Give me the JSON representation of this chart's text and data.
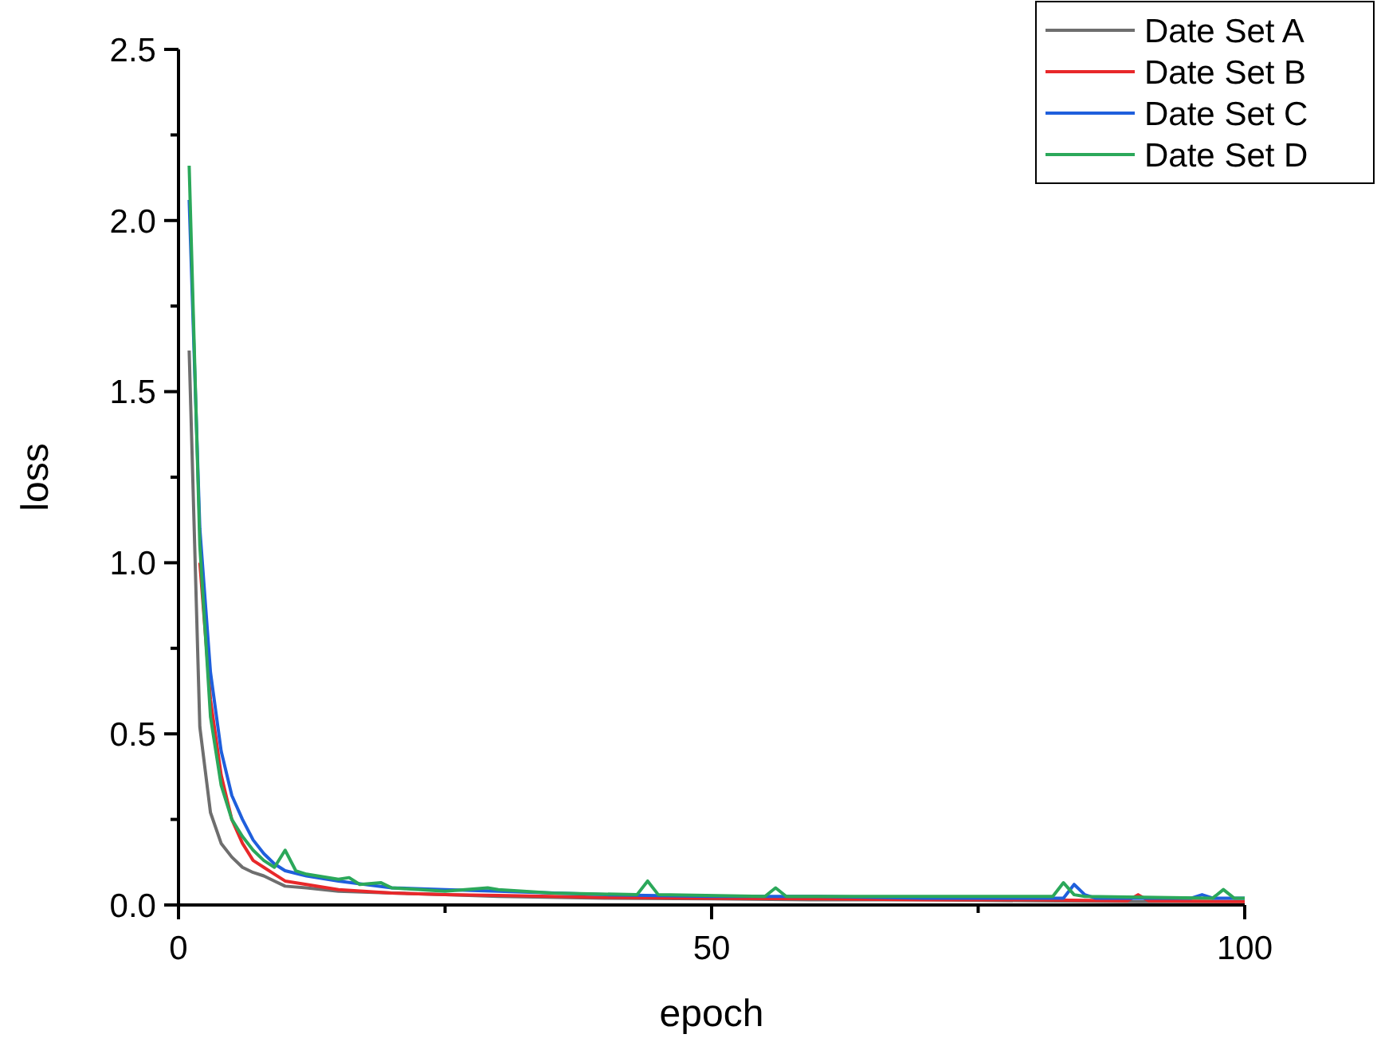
{
  "chart_data": {
    "type": "line",
    "xlabel": "epoch",
    "ylabel": "loss",
    "xlim": [
      0,
      100
    ],
    "ylim": [
      0,
      2.5
    ],
    "xticks": [
      0,
      {
        "value": 25,
        "label": null
      },
      50,
      {
        "value": 75,
        "label": null
      },
      100
    ],
    "yticks": [
      {
        "value": 0,
        "label": "0.0"
      },
      {
        "value": 0.25,
        "label": null
      },
      0.5,
      {
        "value": 0.75,
        "label": null
      },
      {
        "value": 1,
        "label": "1.0"
      },
      {
        "value": 1.25,
        "label": null
      },
      1.5,
      {
        "value": 1.75,
        "label": null
      },
      {
        "value": 2,
        "label": "2.0"
      },
      {
        "value": 2.25,
        "label": null
      },
      2.5
    ],
    "grid": false,
    "legend": "top right",
    "marker": "none",
    "line_style": "solid",
    "series": [
      {
        "name": "Date Set A",
        "color": "#6e6e6e",
        "x": [
          1,
          2,
          3,
          4,
          5,
          6,
          7,
          8,
          9,
          10,
          12,
          15,
          20,
          25,
          30,
          40,
          50,
          60,
          70,
          80,
          90,
          100
        ],
        "values": [
          1.62,
          0.52,
          0.27,
          0.18,
          0.14,
          0.11,
          0.095,
          0.085,
          0.07,
          0.055,
          0.05,
          0.04,
          0.035,
          0.03,
          0.025,
          0.02,
          0.018,
          0.015,
          0.015,
          0.012,
          0.01,
          0.01
        ]
      },
      {
        "name": "Date Set B",
        "color": "#e8282a",
        "x": [
          2,
          3,
          4,
          5,
          6,
          7,
          8,
          9,
          10,
          12,
          15,
          20,
          25,
          30,
          40,
          50,
          60,
          70,
          80,
          89,
          90,
          91,
          100
        ],
        "values": [
          1.0,
          0.6,
          0.38,
          0.25,
          0.18,
          0.13,
          0.11,
          0.09,
          0.07,
          0.06,
          0.045,
          0.035,
          0.03,
          0.028,
          0.022,
          0.02,
          0.018,
          0.015,
          0.015,
          0.012,
          0.03,
          0.012,
          0.01
        ]
      },
      {
        "name": "Date Set C",
        "color": "#1f5fdc",
        "x": [
          1,
          2,
          3,
          4,
          5,
          6,
          7,
          8,
          9,
          10,
          12,
          15,
          20,
          25,
          30,
          40,
          50,
          60,
          70,
          80,
          83,
          84,
          85,
          86,
          95,
          96,
          97,
          100
        ],
        "values": [
          2.06,
          1.1,
          0.68,
          0.45,
          0.32,
          0.25,
          0.19,
          0.15,
          0.12,
          0.1,
          0.085,
          0.07,
          0.05,
          0.045,
          0.04,
          0.03,
          0.025,
          0.025,
          0.02,
          0.02,
          0.02,
          0.06,
          0.03,
          0.02,
          0.02,
          0.03,
          0.02,
          0.02
        ]
      },
      {
        "name": "Date Set D",
        "color": "#2ba85a",
        "x": [
          1,
          2,
          3,
          4,
          5,
          6,
          7,
          8,
          9,
          10,
          11,
          12,
          15,
          16,
          17,
          19,
          20,
          25,
          29,
          30,
          35,
          43,
          44,
          45,
          55,
          56,
          57,
          70,
          82,
          83,
          84,
          85,
          97,
          98,
          99,
          100
        ],
        "values": [
          2.16,
          1.05,
          0.55,
          0.35,
          0.25,
          0.2,
          0.16,
          0.13,
          0.11,
          0.16,
          0.1,
          0.09,
          0.075,
          0.08,
          0.06,
          0.065,
          0.05,
          0.04,
          0.05,
          0.045,
          0.035,
          0.03,
          0.07,
          0.03,
          0.025,
          0.05,
          0.025,
          0.025,
          0.025,
          0.065,
          0.03,
          0.025,
          0.02,
          0.045,
          0.02,
          0.02
        ]
      }
    ]
  }
}
